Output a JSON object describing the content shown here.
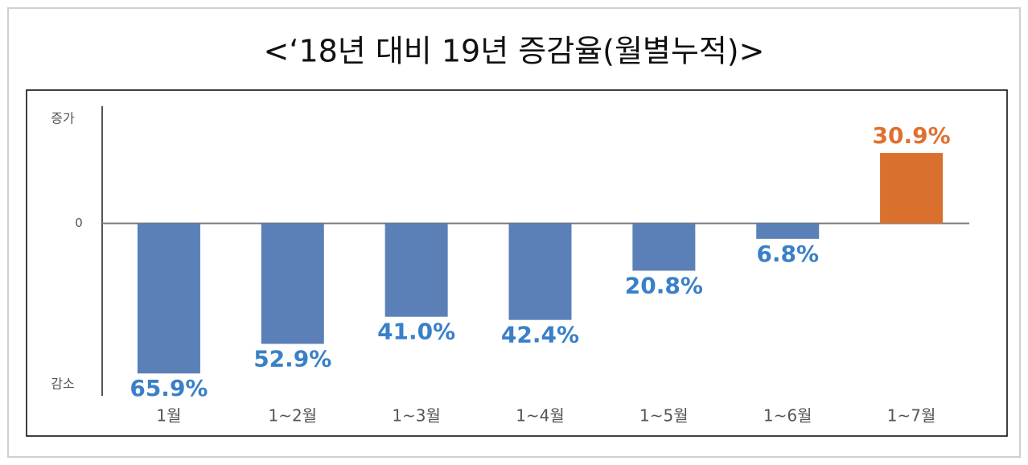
{
  "chart_data": {
    "type": "bar",
    "title": "<‘18년  대비  19년  증감율(월별누적)>",
    "axis_top_label": "증가",
    "axis_bottom_label": "감소",
    "categories": [
      "1월",
      "1~2월",
      "1~3월",
      "1~4월",
      "1~5월",
      "1~6월",
      "1~7월"
    ],
    "values": [
      -65.9,
      -52.9,
      -41.0,
      -42.4,
      -20.8,
      -6.8,
      30.9
    ],
    "value_labels": [
      "65.9%",
      "52.9%",
      "41.0%",
      "42.4%",
      "20.8%",
      "6.8%",
      "30.9%"
    ],
    "colors": [
      "#5b80b8",
      "#5b80b8",
      "#5b80b8",
      "#5b80b8",
      "#5b80b8",
      "#5b80b8",
      "#d9702e"
    ],
    "label_colors": [
      "#3a80c8",
      "#3a80c8",
      "#3a80c8",
      "#3a80c8",
      "#3a80c8",
      "#3a80c8",
      "#e0702e"
    ],
    "ylim": [
      -75,
      50
    ],
    "yticks": [
      0
    ]
  }
}
